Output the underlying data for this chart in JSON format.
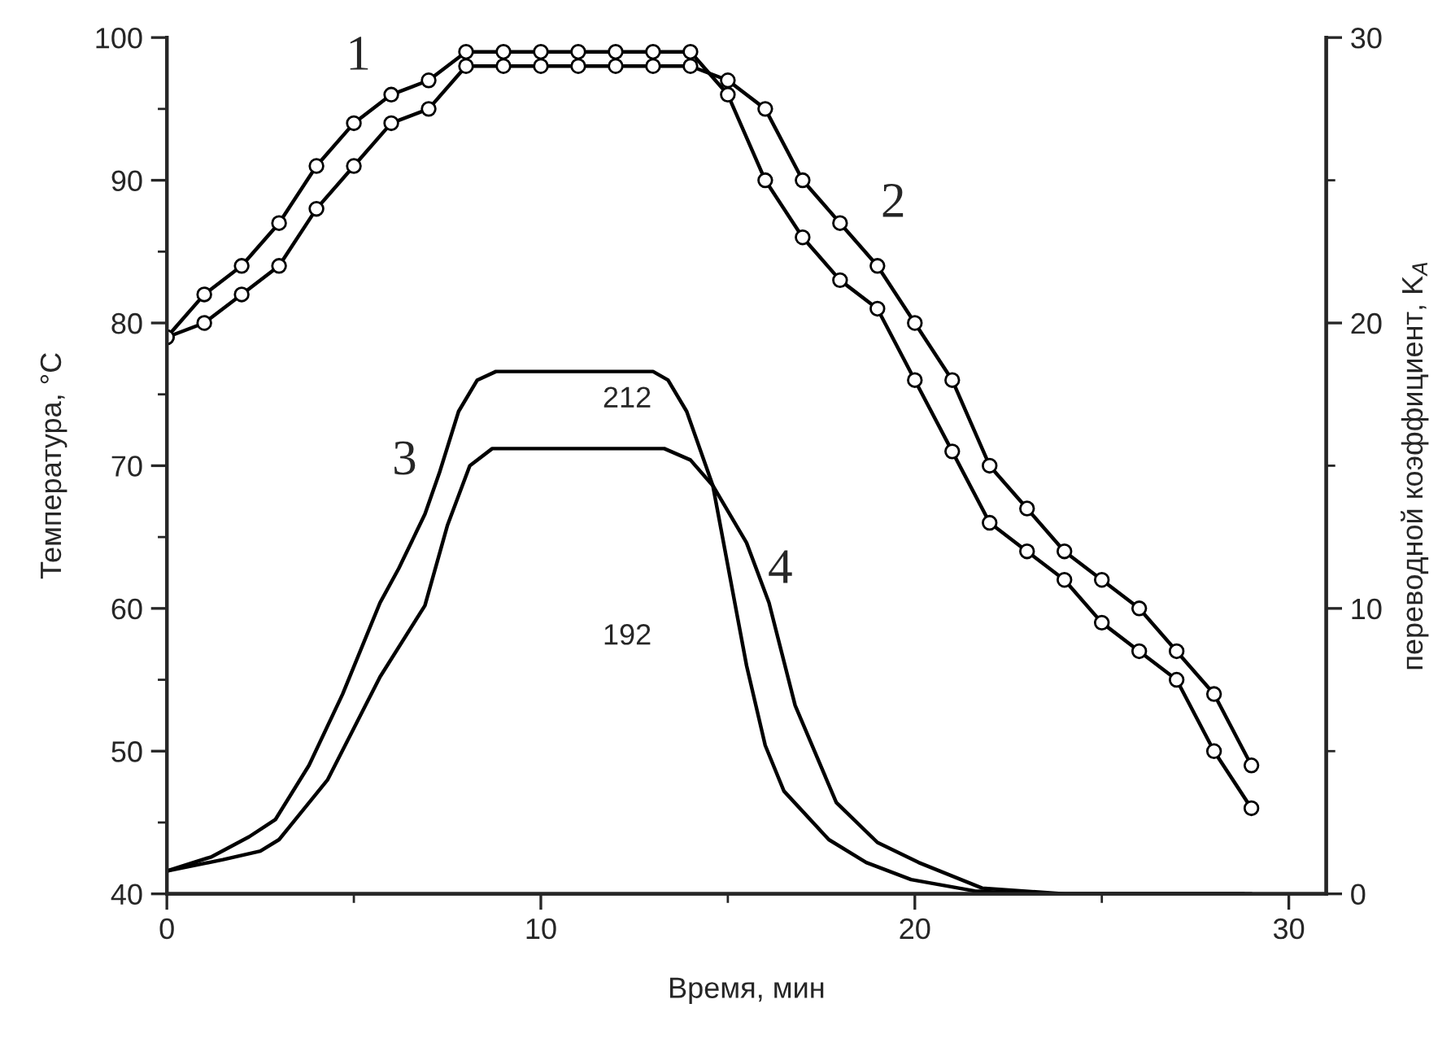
{
  "chart_data": {
    "type": "line",
    "xlabel": "Время, мин",
    "ylabel": "Температура, °C",
    "y2label": "переводной коэффициент, K$_{A}$",
    "xlim": [
      0,
      31
    ],
    "xticks": [
      0,
      10,
      20,
      30
    ],
    "ylim": [
      40,
      100
    ],
    "yticks": [
      40,
      50,
      60,
      70,
      80,
      90,
      100
    ],
    "y2lim": [
      0,
      30
    ],
    "y2ticks": [
      0,
      10,
      20,
      30
    ],
    "grid": false,
    "legend": false,
    "series": [
      {
        "name": "1",
        "color": "#000000",
        "marker": "circle",
        "x": [
          0,
          1,
          2,
          3,
          4,
          5,
          6,
          7,
          8,
          9,
          10,
          11,
          12,
          13,
          14,
          15,
          16,
          17,
          18,
          19,
          20,
          21,
          22,
          23,
          24,
          25,
          26,
          27,
          28,
          29
        ],
        "values": [
          79,
          82,
          84,
          87,
          91,
          94,
          96,
          97,
          99,
          99,
          99,
          99,
          99,
          99,
          99,
          96,
          90,
          86,
          83,
          81,
          76,
          71,
          66,
          64,
          62,
          59,
          57,
          55,
          50,
          46
        ]
      },
      {
        "name": "2",
        "color": "#000000",
        "marker": "circle",
        "x": [
          0,
          1,
          2,
          3,
          4,
          5,
          6,
          7,
          8,
          9,
          10,
          11,
          12,
          13,
          14,
          15,
          16,
          17,
          18,
          19,
          20,
          21,
          22,
          23,
          24,
          25,
          26,
          27,
          28,
          29
        ],
        "values": [
          79,
          80,
          82,
          84,
          88,
          91,
          94,
          95,
          98,
          98,
          98,
          98,
          98,
          98,
          98,
          97,
          95,
          90,
          87,
          84,
          80,
          76,
          70,
          67,
          64,
          62,
          60,
          57,
          54,
          49
        ]
      },
      {
        "name": "3",
        "color": "#000000",
        "marker": "none",
        "axis": "y2",
        "x": [
          0,
          1.2,
          2.2,
          2.9,
          3.8,
          4.7,
          5.7,
          6.2,
          6.9,
          7.3,
          7.8,
          8.3,
          8.8,
          13.0,
          13.4,
          13.9,
          14.6,
          15.0,
          15.5,
          16.0,
          16.5,
          17.7,
          18.7,
          19.9,
          21.6,
          23,
          28.8
        ],
        "values": [
          0.8,
          1.3,
          2.0,
          2.6,
          4.5,
          7.0,
          10.2,
          11.4,
          13.3,
          14.8,
          16.9,
          18.0,
          18.3,
          18.3,
          18.0,
          16.9,
          14.3,
          11.5,
          8.0,
          5.2,
          3.6,
          1.9,
          1.1,
          0.5,
          0.1,
          0,
          0
        ]
      },
      {
        "name": "4",
        "color": "#000000",
        "marker": "none",
        "axis": "y2",
        "x": [
          0,
          1.5,
          2.5,
          3.0,
          4.3,
          5.7,
          6.9,
          7.5,
          8.1,
          8.7,
          13.3,
          14.0,
          14.6,
          15.5,
          16.1,
          16.8,
          17.9,
          19.0,
          20.1,
          21.8,
          24,
          29
        ],
        "values": [
          0.8,
          1.2,
          1.5,
          1.9,
          4.0,
          7.6,
          10.1,
          12.9,
          15.0,
          15.6,
          15.6,
          15.2,
          14.3,
          12.3,
          10.2,
          6.6,
          3.2,
          1.8,
          1.1,
          0.2,
          0,
          0
        ]
      }
    ],
    "annotations": [
      "212",
      "192"
    ]
  }
}
